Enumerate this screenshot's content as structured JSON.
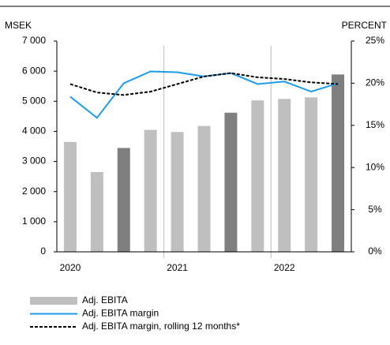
{
  "chart_data": {
    "type": "bar",
    "y_label": "MSEK",
    "y2_label": "PERCENT",
    "categories": [
      "2020",
      null,
      null,
      null,
      "2021",
      null,
      null,
      null,
      "2022",
      null,
      null
    ],
    "series": [
      {
        "name": "Adj. EBITA",
        "type": "bar",
        "colors": [
          "#bfbfbf",
          "#bfbfbf",
          "#7f7f7f",
          "#bfbfbf",
          "#bfbfbf",
          "#bfbfbf",
          "#7f7f7f",
          "#bfbfbf",
          "#bfbfbf",
          "#bfbfbf",
          "#7f7f7f"
        ],
        "values": [
          3650,
          2650,
          3450,
          4050,
          3980,
          4180,
          4620,
          5030,
          5080,
          5130,
          5890
        ]
      },
      {
        "name": "Adj. EBITA margin",
        "type": "line",
        "color": "#1e9be8",
        "axis": "y2",
        "values": [
          18.4,
          15.9,
          20.0,
          21.4,
          21.3,
          20.8,
          21.2,
          19.9,
          20.2,
          19.0,
          20.0
        ]
      },
      {
        "name": "Adj. EBITA margin, rolling 12 months*",
        "type": "line",
        "dashed": true,
        "color": "#000000",
        "axis": "y2",
        "values": [
          19.9,
          18.9,
          18.6,
          19.0,
          19.9,
          20.8,
          21.2,
          20.7,
          20.5,
          20.1,
          19.9
        ]
      }
    ],
    "ylim": [
      0,
      7000
    ],
    "yticks": [
      {
        "value": 0,
        "label": "0"
      },
      {
        "value": 1000,
        "label": "1 000"
      },
      {
        "value": 2000,
        "label": "2 000"
      },
      {
        "value": 3000,
        "label": "3 000"
      },
      {
        "value": 4000,
        "label": "4 000"
      },
      {
        "value": 5000,
        "label": "5 000"
      },
      {
        "value": 6000,
        "label": "6 000"
      },
      {
        "value": 7000,
        "label": "7 000"
      }
    ],
    "y2lim": [
      0,
      25
    ],
    "y2ticks": [
      {
        "value": 0,
        "label": "0%"
      },
      {
        "value": 5,
        "label": "5%"
      },
      {
        "value": 10,
        "label": "10%"
      },
      {
        "value": 15,
        "label": "15%"
      },
      {
        "value": 20,
        "label": "20%"
      },
      {
        "value": 25,
        "label": "25%"
      }
    ]
  }
}
